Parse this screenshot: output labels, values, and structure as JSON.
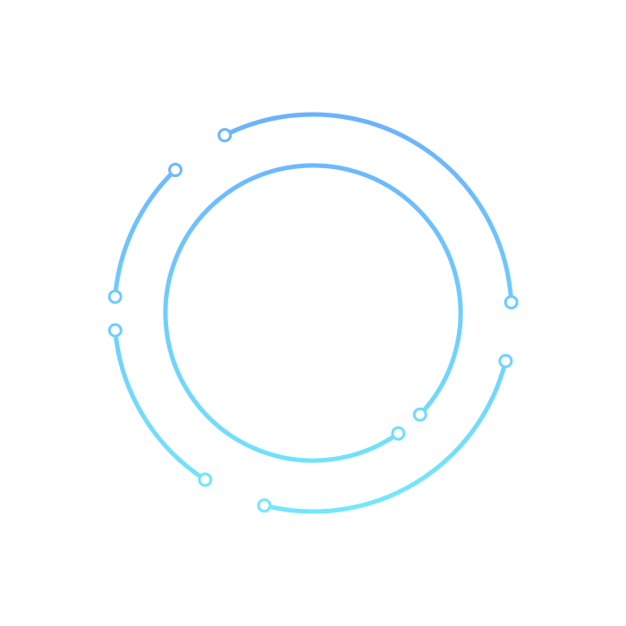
{
  "colors": {
    "background": "#ffffff",
    "gradient_top": "#6cb2fb",
    "gradient_bottom": "#74e8fb",
    "node_fill": "#ffffff"
  }
}
